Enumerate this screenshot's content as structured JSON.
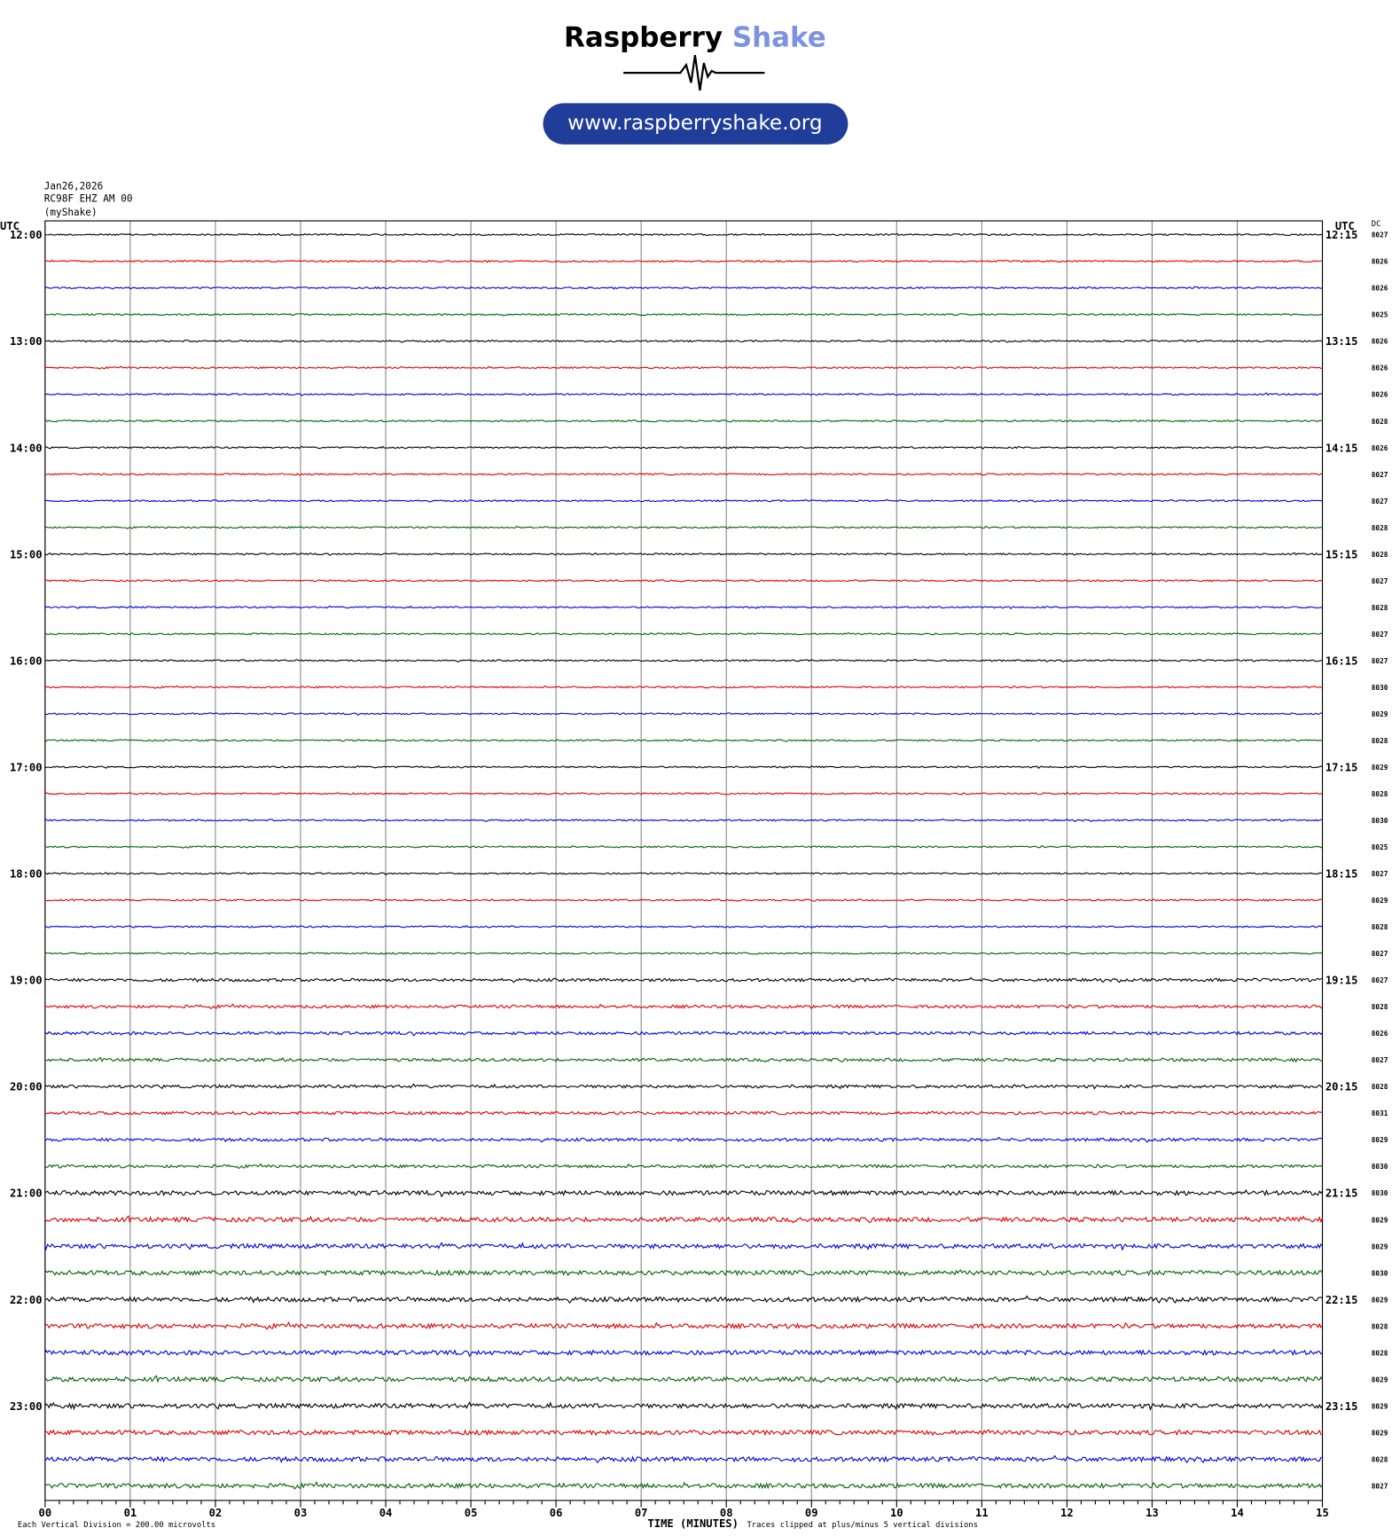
{
  "logo": {
    "brand_first": "Raspberry",
    "brand_second": "Shake",
    "url": "www.raspberryshake.org"
  },
  "chart_data": {
    "type": "helicorder",
    "date": "Jan26,2026",
    "station": "RC98F EHZ AM 00",
    "source": "(myShake)",
    "left_axis_title": "UTC",
    "right_axis_title": "UTC",
    "dc_title": "DC",
    "left_labels": [
      "12:00",
      "13:00",
      "14:00",
      "15:00",
      "16:00",
      "17:00",
      "18:00",
      "19:00",
      "20:00",
      "21:00",
      "22:00",
      "23:00"
    ],
    "right_labels": [
      "12:15",
      "13:15",
      "14:15",
      "15:15",
      "16:15",
      "17:15",
      "18:15",
      "19:15",
      "20:15",
      "21:15",
      "22:15",
      "23:15"
    ],
    "dc_values": [
      8027,
      8026,
      8026,
      8025,
      8026,
      8026,
      8026,
      8028,
      8026,
      8027,
      8027,
      8028,
      8028,
      8027,
      8028,
      8027,
      8027,
      8030,
      8029,
      8028,
      8029,
      8028,
      8030,
      8025,
      8027,
      8029,
      8028,
      8027,
      8027,
      8028,
      8026,
      8027,
      8028,
      8031,
      8029,
      8030,
      8030,
      8029,
      8029,
      8030,
      8029,
      8028,
      8028,
      8029,
      8029,
      8029,
      8028,
      8027
    ],
    "row_colors": [
      "#000000",
      "#e00000",
      "#0000e0",
      "#006400"
    ],
    "xlim": [
      0,
      15
    ],
    "xticks": [
      {
        "value": 0,
        "label": "00"
      },
      {
        "value": 1,
        "label": "01"
      },
      {
        "value": 2,
        "label": "02"
      },
      {
        "value": 3,
        "label": "03"
      },
      {
        "value": 4,
        "label": "04"
      },
      {
        "value": 5,
        "label": "05"
      },
      {
        "value": 6,
        "label": "06"
      },
      {
        "value": 7,
        "label": "07"
      },
      {
        "value": 8,
        "label": "08"
      },
      {
        "value": 9,
        "label": "09"
      },
      {
        "value": 10,
        "label": "10"
      },
      {
        "value": 11,
        "label": "11"
      },
      {
        "value": 12,
        "label": "12"
      },
      {
        "value": 13,
        "label": "13"
      },
      {
        "value": 14,
        "label": "14"
      },
      {
        "value": 15,
        "label": "15"
      }
    ],
    "xlabel": "TIME (MINUTES)",
    "footer_left": "Each Vertical Division =  200.00 microvolts",
    "footer_right": "Traces clipped at plus/minus 5 vertical divisions"
  }
}
